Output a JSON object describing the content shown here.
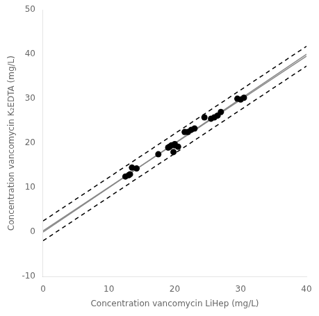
{
  "chart_data": {
    "type": "scatter",
    "xlabel": "Concentration vancomycin LiHep (mg/L)",
    "ylabel": "Concentration vancomycin K₂EDTA (mg/L)",
    "series": [
      {
        "type": "scatter",
        "color": "#000000",
        "marker": "circle",
        "x": [
          12.5,
          13.0,
          13.2,
          13.5,
          14.2,
          17.5,
          19.0,
          19.2,
          19.5,
          19.8,
          20.0,
          20.0,
          20.5,
          21.5,
          22.0,
          22.5,
          23.0,
          24.5,
          25.5,
          26.0,
          26.5,
          27.0,
          29.5,
          30.0,
          30.5
        ],
        "values": [
          12.5,
          12.8,
          13.0,
          14.5,
          14.3,
          17.5,
          19.0,
          19.2,
          19.5,
          18.0,
          19.5,
          19.8,
          19.2,
          22.5,
          22.5,
          23.0,
          23.3,
          25.8,
          25.5,
          25.8,
          26.2,
          27.0,
          30.0,
          29.8,
          30.2
        ]
      },
      {
        "type": "line",
        "color": "#888888",
        "line_style": "solid",
        "x": [
          0,
          40
        ],
        "values": [
          0,
          40
        ]
      },
      {
        "type": "line",
        "color": "#888888",
        "line_style": "solid",
        "x": [
          0,
          40
        ],
        "values": [
          0.28,
          39.56
        ]
      },
      {
        "type": "line",
        "color": "#000000",
        "line_style": "dashed",
        "x": [
          0,
          40
        ],
        "values": [
          2.5,
          41.78
        ]
      },
      {
        "type": "line",
        "color": "#000000",
        "line_style": "dashed",
        "x": [
          0,
          40
        ],
        "values": [
          -1.95,
          37.33
        ]
      }
    ],
    "xlim": [
      0,
      40
    ],
    "xticks": [
      0,
      10,
      20,
      30,
      40
    ],
    "ylim": [
      -10,
      50
    ],
    "yticks": [
      -10,
      0,
      10,
      20,
      30,
      40,
      50
    ],
    "grid": false
  }
}
